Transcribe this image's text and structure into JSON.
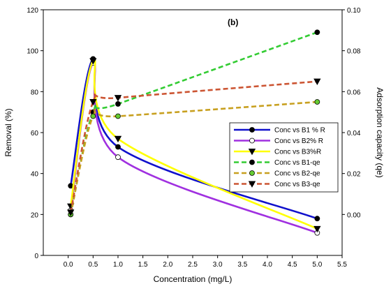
{
  "chart_data": {
    "type": "line",
    "panel_label": "(b)",
    "xlabel": "Concentration (mg/L)",
    "ylabel": "Removal (%)",
    "y2label": "Adsorption capacity (qe)",
    "xlim": [
      -0.5,
      5.5
    ],
    "ylim": [
      0,
      120
    ],
    "y2lim": [
      -0.02,
      0.1
    ],
    "x_ticks": [
      "0.0",
      "0.5",
      "1.0",
      "1.5",
      "2.0",
      "2.5",
      "3.0",
      "3.5",
      "4.0",
      "4.5",
      "5.0",
      "5.5"
    ],
    "y_ticks": [
      "0",
      "20",
      "40",
      "60",
      "80",
      "100",
      "120"
    ],
    "y2_ticks": [
      "0.00",
      "0.02",
      "0.04",
      "0.06",
      "0.08",
      "0.10"
    ],
    "legend_position": "right",
    "series": [
      {
        "name": "Conc vs B1 % R",
        "axis": "left",
        "color": "#1010cc",
        "dash": "solid",
        "marker": "circle",
        "marker_fill": "#000000",
        "x": [
          0.05,
          0.5,
          1.0,
          5.0
        ],
        "y": [
          34,
          96,
          53,
          18
        ]
      },
      {
        "name": "Conc vs B2% R",
        "axis": "left",
        "color": "#a030e0",
        "dash": "solid",
        "marker": "circle",
        "marker_fill": "#ffffff",
        "x": [
          0.05,
          0.5,
          1.0,
          5.0
        ],
        "y": [
          22,
          94,
          48,
          11
        ]
      },
      {
        "name": "Conc vs B3%R",
        "axis": "left",
        "color": "#ffff00",
        "dash": "solid",
        "marker": "triangle",
        "marker_fill": "#000000",
        "x": [
          0.05,
          0.5,
          1.0,
          5.0
        ],
        "y": [
          24,
          95,
          57,
          13
        ]
      },
      {
        "name": "Conc vs B1-qe",
        "axis": "right",
        "color": "#33cc33",
        "dash": "dashed",
        "marker": "circle",
        "marker_fill": "#000000",
        "x": [
          0.05,
          0.5,
          1.0,
          5.0
        ],
        "y": [
          0.0,
          0.05,
          0.054,
          0.089
        ]
      },
      {
        "name": "Conc vs B2-qe",
        "axis": "right",
        "color": "#c8a020",
        "dash": "dashed",
        "marker": "circle",
        "marker_fill": "#66cc33",
        "x": [
          0.05,
          0.5,
          1.0,
          5.0
        ],
        "y": [
          0.0,
          0.048,
          0.048,
          0.055
        ]
      },
      {
        "name": "Conc vs B3-qe",
        "axis": "right",
        "color": "#cc5533",
        "dash": "dashed",
        "marker": "triangle",
        "marker_fill": "#000000",
        "x": [
          0.05,
          0.5,
          1.0,
          5.0
        ],
        "y": [
          0.001,
          0.055,
          0.057,
          0.065
        ]
      }
    ]
  }
}
